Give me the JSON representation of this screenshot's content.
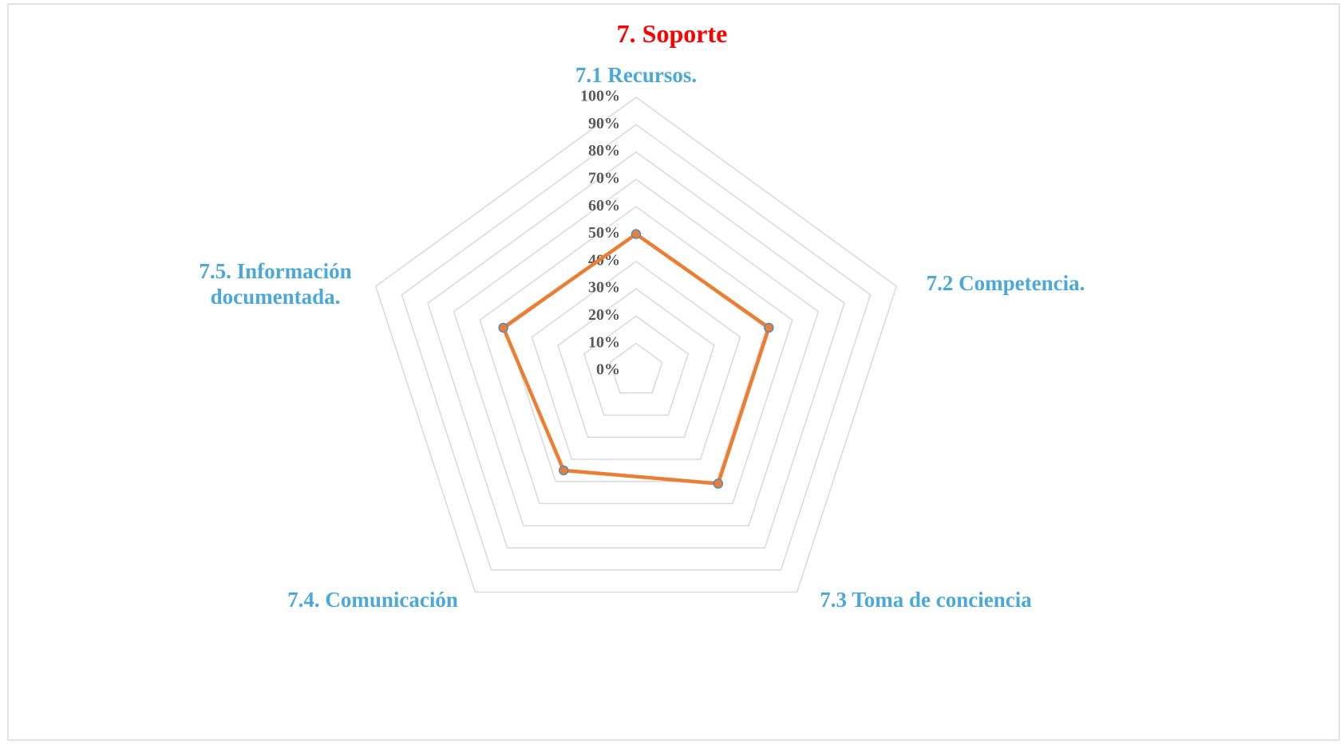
{
  "chart_data": {
    "type": "radar",
    "title": "7. Soporte",
    "categories": [
      "7.1 Recursos.",
      "7.2 Competencia.",
      "7.3 Toma de conciencia",
      "7.4. Comunicación",
      "7.5. Información documentada."
    ],
    "series": [
      {
        "color": "#ed7d31",
        "values": [
          50,
          51,
          51,
          45,
          51
        ]
      }
    ],
    "ylim": [
      0,
      100
    ],
    "yticks": [
      {
        "value": 0,
        "label": "0%"
      },
      {
        "value": 10,
        "label": "10%"
      },
      {
        "value": 20,
        "label": "20%"
      },
      {
        "value": 30,
        "label": "30%"
      },
      {
        "value": 40,
        "label": "40%"
      },
      {
        "value": 50,
        "label": "50%"
      },
      {
        "value": 60,
        "label": "60%"
      },
      {
        "value": 70,
        "label": "70%"
      },
      {
        "value": 80,
        "label": "80%"
      },
      {
        "value": 90,
        "label": "90%"
      },
      {
        "value": 100,
        "label": "100%"
      }
    ],
    "grid": true
  }
}
